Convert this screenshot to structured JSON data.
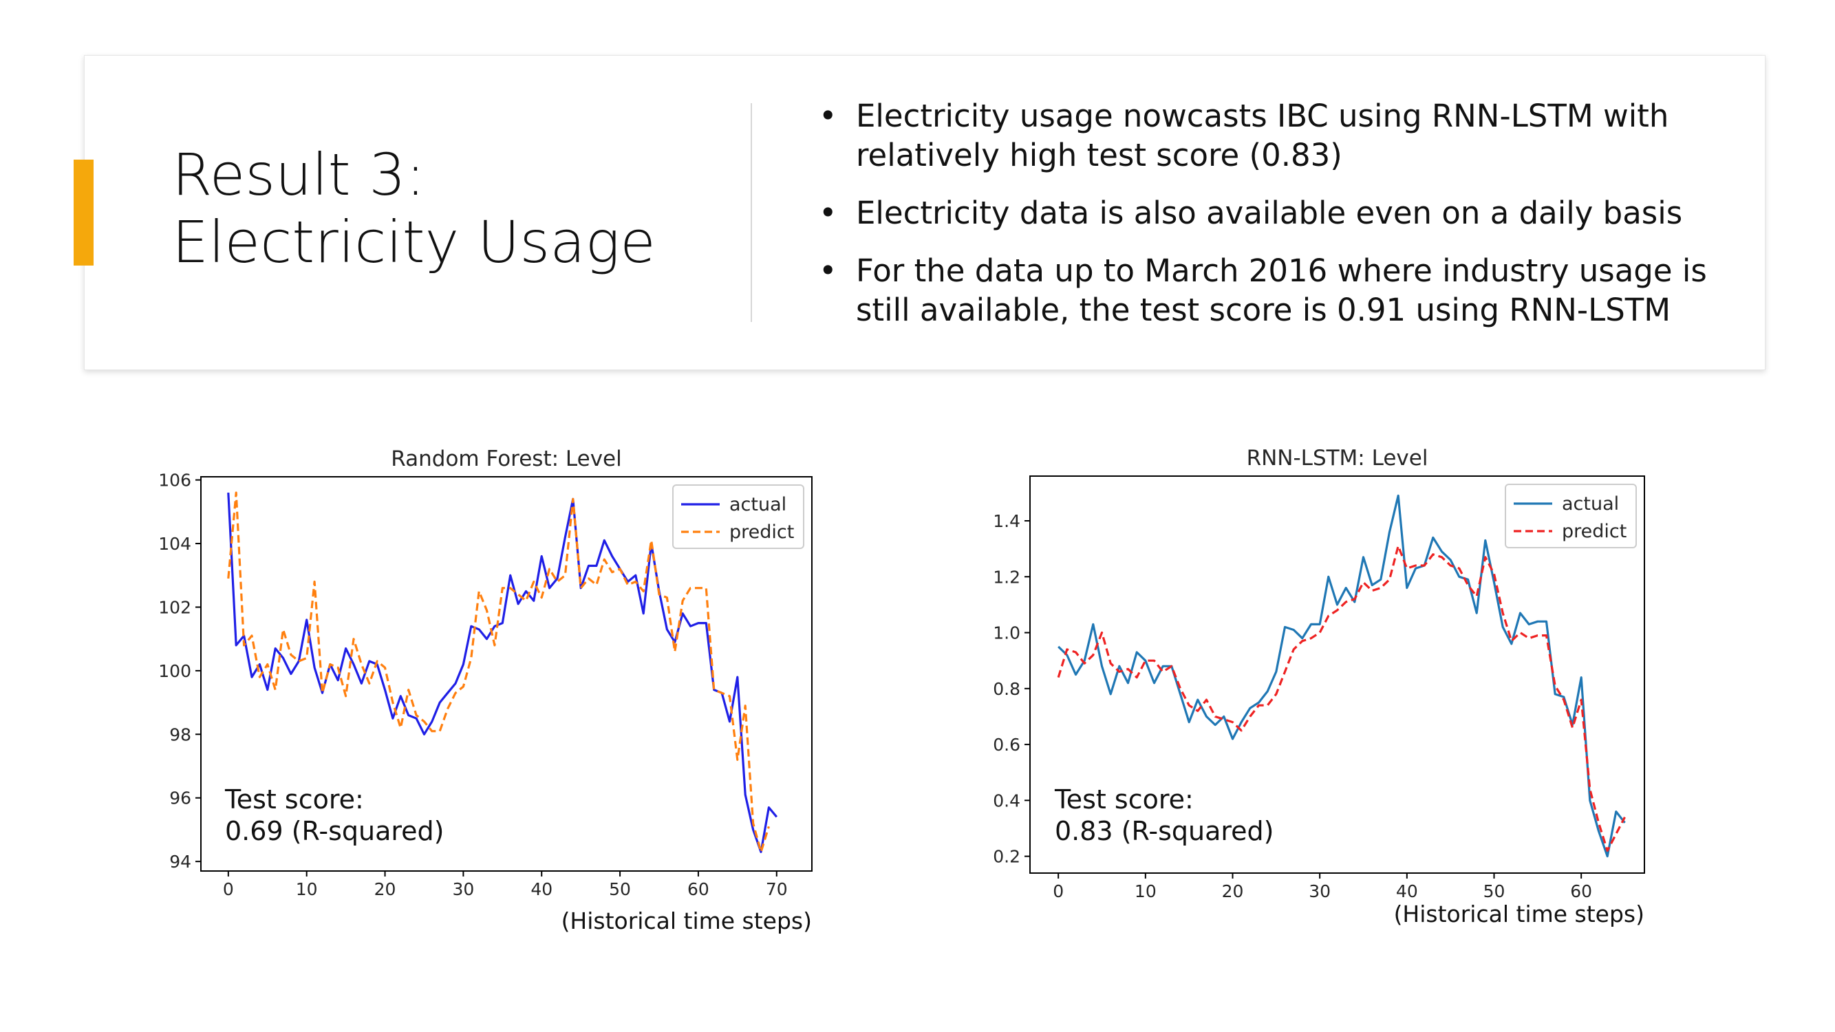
{
  "slide": {
    "title_line1": "Result 3:",
    "title_line2": "Electricity Usage",
    "bullets": [
      "Electricity usage nowcasts IBC using RNN-LSTM with relatively high test score (0.83)",
      "Electricity data is also available even on a daily basis",
      "For the data up to March 2016 where industry usage is still available, the test score is 0.91 using RNN-LSTM"
    ],
    "accent_color": "#f5a80c"
  },
  "chart_data": [
    {
      "type": "line",
      "title": "Random Forest: Level",
      "xlabel": "(Historical time steps)",
      "ylabel": "",
      "xlim": [
        -3.5,
        74.5
      ],
      "ylim": [
        93.7,
        106.1
      ],
      "xticks": [
        0,
        10,
        20,
        30,
        40,
        50,
        60,
        70
      ],
      "yticks": [
        94,
        96,
        98,
        100,
        102,
        104,
        106
      ],
      "annotation_line1": "Test score:",
      "annotation_line2": "0.69 (R-squared)",
      "legend_position": "top-right",
      "series": [
        {
          "name": "actual",
          "color": "#1f1fe6",
          "style": "solid",
          "values": [
            105.6,
            100.8,
            101.1,
            99.8,
            100.2,
            99.4,
            100.7,
            100.4,
            99.9,
            100.3,
            101.6,
            100.1,
            99.3,
            100.2,
            99.7,
            100.7,
            100.2,
            99.6,
            100.3,
            100.2,
            99.4,
            98.5,
            99.2,
            98.6,
            98.5,
            98.0,
            98.4,
            99.0,
            99.3,
            99.6,
            100.2,
            101.4,
            101.3,
            101.0,
            101.4,
            101.5,
            103.0,
            102.1,
            102.5,
            102.2,
            103.6,
            102.6,
            102.9,
            104.2,
            105.4,
            102.6,
            103.3,
            103.3,
            104.1,
            103.6,
            103.2,
            102.8,
            103.0,
            101.8,
            104.0,
            102.5,
            101.3,
            100.9,
            101.8,
            101.4,
            101.5,
            101.5,
            99.4,
            99.3,
            98.4,
            99.8,
            96.1,
            95.0,
            94.3,
            95.7,
            95.4
          ]
        },
        {
          "name": "predict",
          "color": "#ff7f0e",
          "style": "dashed",
          "values": [
            102.9,
            105.6,
            100.8,
            101.1,
            99.8,
            100.2,
            99.4,
            101.3,
            100.5,
            100.3,
            100.4,
            102.8,
            99.3,
            100.2,
            100.1,
            99.2,
            101.0,
            100.2,
            99.6,
            100.3,
            100.1,
            99.0,
            98.2,
            99.4,
            98.6,
            98.4,
            98.1,
            98.1,
            98.8,
            99.3,
            99.5,
            100.4,
            102.5,
            101.9,
            100.8,
            102.6,
            102.6,
            102.4,
            102.2,
            102.8,
            102.3,
            103.2,
            102.8,
            103.0,
            105.4,
            102.6,
            102.9,
            102.7,
            103.5,
            103.1,
            103.2,
            102.7,
            102.8,
            102.5,
            104.1,
            102.4,
            102.3,
            100.6,
            102.2,
            102.6,
            102.6,
            102.6,
            99.4,
            99.3,
            99.2,
            97.2,
            98.9,
            95.2,
            94.3,
            95.1
          ]
        }
      ]
    },
    {
      "type": "line",
      "title": "RNN-LSTM: Level",
      "xlabel": "(Historical time steps)",
      "ylabel": "",
      "xlim": [
        -3.25,
        67.25
      ],
      "ylim": [
        0.14,
        1.56
      ],
      "xticks": [
        0,
        10,
        20,
        30,
        40,
        50,
        60
      ],
      "yticks": [
        0.2,
        0.4,
        0.6,
        0.8,
        1.0,
        1.2,
        1.4
      ],
      "annotation_line1": "Test score:",
      "annotation_line2": "0.83 (R-squared)",
      "legend_position": "top-right",
      "series": [
        {
          "name": "actual",
          "color": "#1f77b4",
          "style": "solid",
          "values": [
            0.95,
            0.92,
            0.85,
            0.9,
            1.03,
            0.88,
            0.78,
            0.88,
            0.82,
            0.93,
            0.9,
            0.82,
            0.88,
            0.88,
            0.78,
            0.68,
            0.76,
            0.7,
            0.67,
            0.7,
            0.62,
            0.68,
            0.73,
            0.75,
            0.79,
            0.86,
            1.02,
            1.01,
            0.98,
            1.03,
            1.03,
            1.2,
            1.1,
            1.16,
            1.11,
            1.27,
            1.17,
            1.19,
            1.36,
            1.49,
            1.16,
            1.23,
            1.24,
            1.34,
            1.29,
            1.26,
            1.2,
            1.19,
            1.07,
            1.33,
            1.18,
            1.02,
            0.96,
            1.07,
            1.03,
            1.04,
            1.04,
            0.78,
            0.77,
            0.67,
            0.84,
            0.4,
            0.29,
            0.2,
            0.36,
            0.32
          ]
        },
        {
          "name": "predict",
          "color": "#ee2222",
          "style": "dashed",
          "values": [
            0.84,
            0.94,
            0.93,
            0.89,
            0.92,
            1.0,
            0.89,
            0.86,
            0.87,
            0.84,
            0.9,
            0.9,
            0.86,
            0.88,
            0.8,
            0.74,
            0.72,
            0.76,
            0.7,
            0.69,
            0.68,
            0.65,
            0.7,
            0.74,
            0.74,
            0.78,
            0.86,
            0.94,
            0.97,
            0.98,
            1.0,
            1.06,
            1.08,
            1.11,
            1.12,
            1.18,
            1.15,
            1.16,
            1.19,
            1.31,
            1.23,
            1.24,
            1.24,
            1.28,
            1.27,
            1.24,
            1.23,
            1.17,
            1.13,
            1.27,
            1.21,
            1.07,
            0.97,
            1.0,
            0.98,
            0.99,
            0.99,
            0.81,
            0.76,
            0.66,
            0.76,
            0.44,
            0.32,
            0.22,
            0.28,
            0.34
          ]
        }
      ]
    }
  ]
}
